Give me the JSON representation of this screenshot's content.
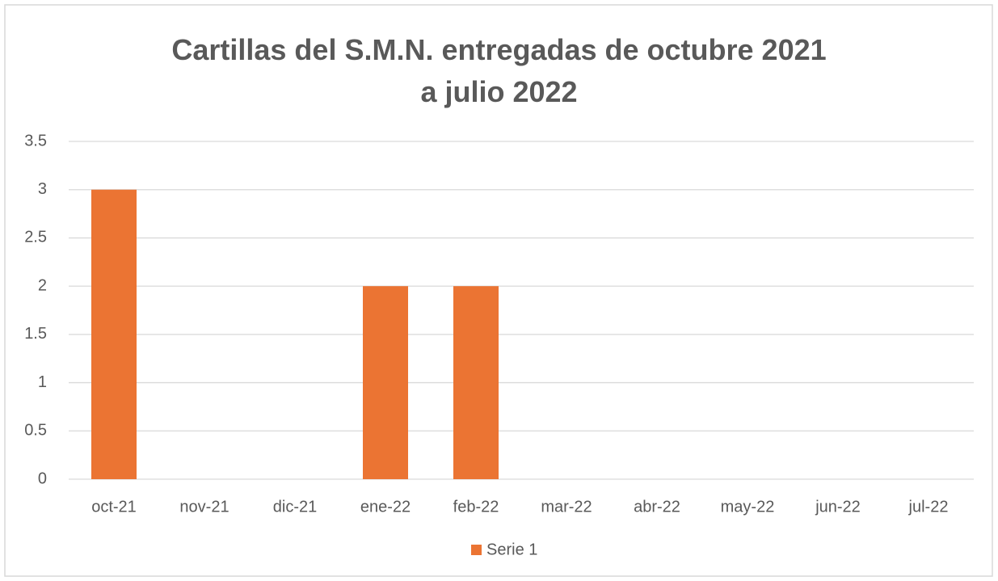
{
  "chart_data": {
    "type": "bar",
    "title": "Cartillas del S.M.N. entregadas de octubre 2021 a julio 2022",
    "categories": [
      "oct-21",
      "nov-21",
      "dic-21",
      "ene-22",
      "feb-22",
      "mar-22",
      "abr-22",
      "may-22",
      "jun-22",
      "jul-22"
    ],
    "series": [
      {
        "name": "Serie 1",
        "color": "#eb7433",
        "values": [
          3,
          0,
          0,
          2,
          2,
          0,
          0,
          0,
          0,
          0
        ]
      }
    ],
    "ylim": [
      0,
      3.5
    ],
    "yticks": [
      0,
      0.5,
      1,
      1.5,
      2,
      2.5,
      3,
      3.5
    ],
    "grid": true,
    "legend": "bottom"
  }
}
